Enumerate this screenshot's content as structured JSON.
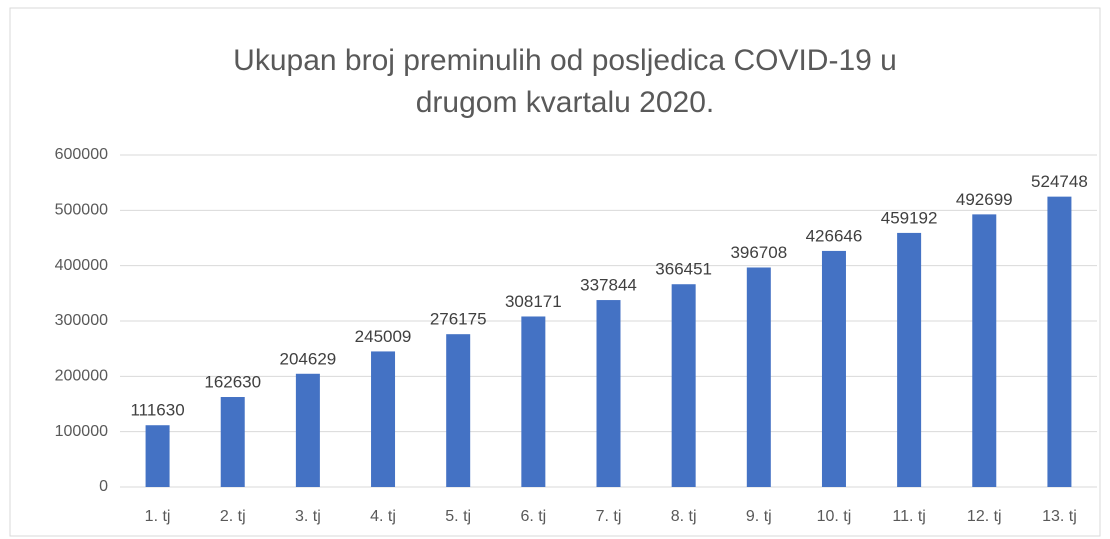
{
  "chart_data": {
    "type": "bar",
    "title": "Ukupan broj preminulih od posljedica COVID-19 u drugom kvartalu 2020.",
    "categories": [
      "1. tj",
      "2. tj",
      "3. tj",
      "4. tj",
      "5. tj",
      "6. tj",
      "7. tj",
      "8. tj",
      "9. tj",
      "10. tj",
      "11. tj",
      "12. tj",
      "13. tj"
    ],
    "values": [
      111630,
      162630,
      204629,
      245009,
      276175,
      308171,
      337844,
      366451,
      396708,
      426646,
      459192,
      492699,
      524748
    ],
    "color": "#4472c4",
    "ylim": [
      0,
      600000
    ],
    "yticks": [
      0,
      100000,
      200000,
      300000,
      400000,
      500000,
      600000
    ],
    "grid": true
  }
}
